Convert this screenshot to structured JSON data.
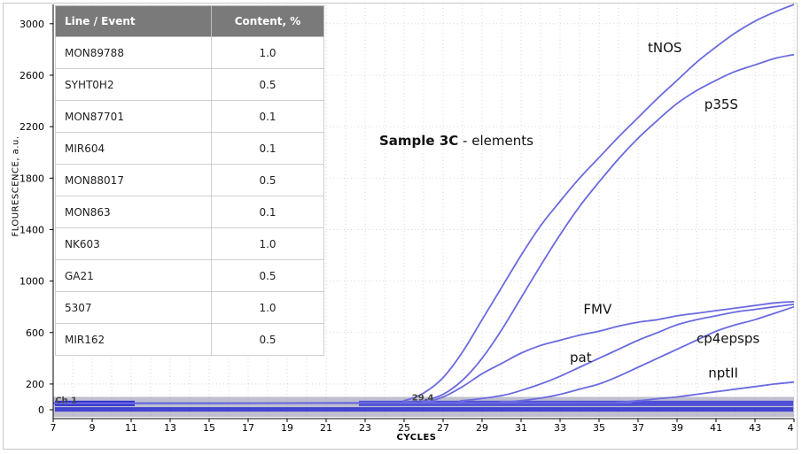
{
  "table": {
    "headers": [
      "Line / Event",
      "Content, %"
    ],
    "rows": [
      [
        "MON89788",
        "1.0"
      ],
      [
        "SYHT0H2",
        "0.5"
      ],
      [
        "MON87701",
        "0.1"
      ],
      [
        "MIR604",
        "0.1"
      ],
      [
        "MON88017",
        "0.5"
      ],
      [
        "MON863",
        "0.1"
      ],
      [
        "NK603",
        "1.0"
      ],
      [
        "GA21",
        "0.5"
      ],
      [
        "5307",
        "1.0"
      ],
      [
        "MIR162",
        "0.5"
      ]
    ]
  },
  "sample_label": {
    "bold": "Sample 3C",
    "rest": " - elements"
  },
  "chart_data": {
    "type": "line",
    "xlabel": "CYCLES",
    "ylabel": "FLOURESCENCE, a.u.",
    "xlim": [
      7,
      45
    ],
    "ylim": [
      0,
      3150
    ],
    "x_ticks": [
      "7",
      "9",
      "11",
      "13",
      "15",
      "17",
      "19",
      "21",
      "23",
      "25",
      "27",
      "29",
      "31",
      "33",
      "35",
      "37",
      "39",
      "41",
      "43",
      "4"
    ],
    "y_ticks": [
      0,
      200,
      600,
      1000,
      1400,
      1800,
      2200,
      2600,
      3000
    ],
    "grid": true,
    "annotations": [
      {
        "text": "Ch 1",
        "x": 7.1,
        "y": 80
      },
      {
        "text": "29.4",
        "x": 25.4,
        "y": 100
      }
    ],
    "series": [
      {
        "name": "tNOS",
        "label_at": [
          37.5,
          2780
        ],
        "color": "#6a6ae0",
        "points": [
          [
            7,
            50
          ],
          [
            24,
            52
          ],
          [
            25,
            70
          ],
          [
            26,
            130
          ],
          [
            27,
            250
          ],
          [
            28,
            450
          ],
          [
            29,
            700
          ],
          [
            30,
            950
          ],
          [
            31,
            1200
          ],
          [
            32,
            1430
          ],
          [
            33,
            1620
          ],
          [
            34,
            1800
          ],
          [
            35,
            1960
          ],
          [
            36,
            2120
          ],
          [
            37,
            2270
          ],
          [
            38,
            2420
          ],
          [
            39,
            2560
          ],
          [
            40,
            2700
          ],
          [
            41,
            2820
          ],
          [
            42,
            2930
          ],
          [
            43,
            3020
          ],
          [
            44,
            3090
          ],
          [
            45,
            3150
          ]
        ]
      },
      {
        "name": "p35S",
        "label_at": [
          40.4,
          2340
        ],
        "color": "#6a6ae0",
        "points": [
          [
            7,
            50
          ],
          [
            25,
            55
          ],
          [
            26,
            70
          ],
          [
            27,
            120
          ],
          [
            28,
            230
          ],
          [
            29,
            400
          ],
          [
            30,
            620
          ],
          [
            31,
            870
          ],
          [
            32,
            1120
          ],
          [
            33,
            1360
          ],
          [
            34,
            1580
          ],
          [
            35,
            1770
          ],
          [
            36,
            1950
          ],
          [
            37,
            2110
          ],
          [
            38,
            2250
          ],
          [
            39,
            2380
          ],
          [
            40,
            2480
          ],
          [
            41,
            2560
          ],
          [
            42,
            2630
          ],
          [
            43,
            2680
          ],
          [
            44,
            2730
          ],
          [
            45,
            2760
          ]
        ]
      },
      {
        "name": "FMV",
        "label_at": [
          34.2,
          745
        ],
        "color": "#6a6ae0",
        "points": [
          [
            7,
            50
          ],
          [
            24,
            52
          ],
          [
            26,
            60
          ],
          [
            27,
            100
          ],
          [
            28,
            180
          ],
          [
            29,
            280
          ],
          [
            30,
            360
          ],
          [
            31,
            440
          ],
          [
            32,
            500
          ],
          [
            33,
            540
          ],
          [
            34,
            580
          ],
          [
            35,
            610
          ],
          [
            36,
            650
          ],
          [
            37,
            680
          ],
          [
            38,
            700
          ],
          [
            39,
            730
          ],
          [
            40,
            750
          ],
          [
            41,
            770
          ],
          [
            42,
            790
          ],
          [
            43,
            810
          ],
          [
            44,
            830
          ],
          [
            45,
            840
          ]
        ]
      },
      {
        "name": "pat",
        "label_at": [
          33.5,
          370
        ],
        "color": "#6a6ae0",
        "points": [
          [
            7,
            50
          ],
          [
            26,
            52
          ],
          [
            28,
            70
          ],
          [
            30,
            110
          ],
          [
            31,
            150
          ],
          [
            32,
            200
          ],
          [
            33,
            260
          ],
          [
            34,
            330
          ],
          [
            35,
            400
          ],
          [
            36,
            470
          ],
          [
            37,
            540
          ],
          [
            38,
            600
          ],
          [
            39,
            660
          ],
          [
            40,
            700
          ],
          [
            41,
            730
          ],
          [
            42,
            760
          ],
          [
            43,
            780
          ],
          [
            44,
            800
          ],
          [
            45,
            820
          ]
        ]
      },
      {
        "name": "cp4epsps",
        "label_at": [
          40.0,
          520
        ],
        "color": "#6a6ae0",
        "points": [
          [
            7,
            50
          ],
          [
            28,
            52
          ],
          [
            30,
            60
          ],
          [
            31,
            70
          ],
          [
            32,
            90
          ],
          [
            33,
            120
          ],
          [
            34,
            160
          ],
          [
            35,
            200
          ],
          [
            36,
            260
          ],
          [
            37,
            330
          ],
          [
            38,
            400
          ],
          [
            39,
            470
          ],
          [
            40,
            540
          ],
          [
            41,
            610
          ],
          [
            42,
            660
          ],
          [
            43,
            700
          ],
          [
            44,
            750
          ],
          [
            45,
            800
          ]
        ]
      },
      {
        "name": "nptII",
        "label_at": [
          40.6,
          250
        ],
        "color": "#6a6ae0",
        "points": [
          [
            7,
            50
          ],
          [
            34,
            52
          ],
          [
            36,
            58
          ],
          [
            37,
            70
          ],
          [
            38,
            85
          ],
          [
            39,
            100
          ],
          [
            40,
            120
          ],
          [
            41,
            140
          ],
          [
            42,
            160
          ],
          [
            43,
            180
          ],
          [
            44,
            200
          ],
          [
            45,
            215
          ]
        ]
      }
    ]
  }
}
